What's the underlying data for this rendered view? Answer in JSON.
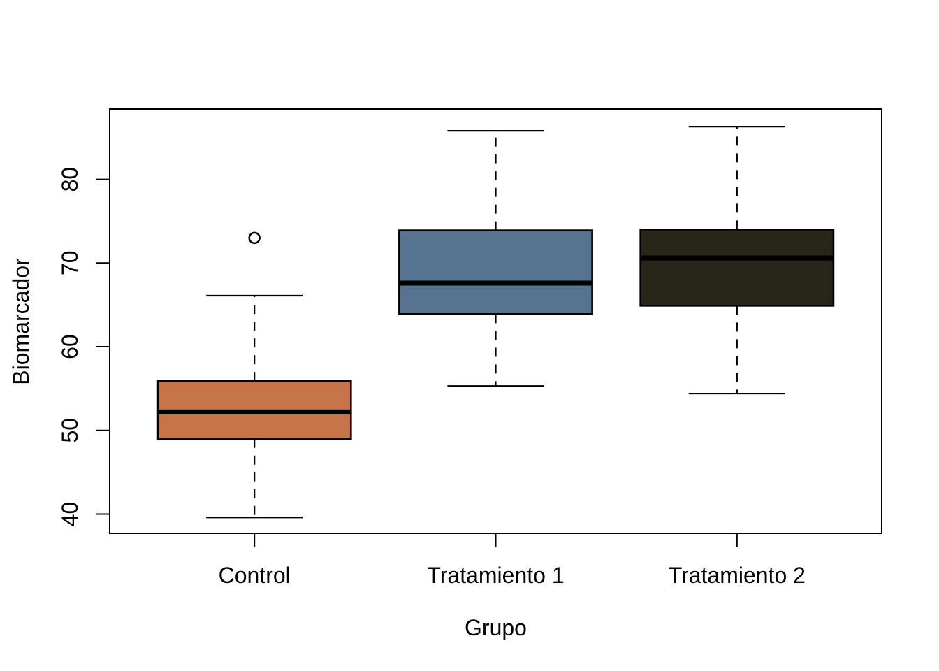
{
  "figure": {
    "background": "#FFFFFF",
    "axis_color": "#000000",
    "text_color": "#000000"
  },
  "chart_data": {
    "type": "boxplot",
    "title": "",
    "xlabel": "Grupo",
    "ylabel": "Biomarcador",
    "categories": [
      "Control",
      "Tratamiento 1",
      "Tratamiento 2"
    ],
    "yticks": [
      40,
      50,
      60,
      70,
      80
    ],
    "ylim": [
      37.7,
      88.4
    ],
    "xlim": [
      0.4,
      3.6
    ],
    "box_width": 0.8,
    "cap_width": 0.4,
    "grid": false,
    "legend": null,
    "orientation": "vertical",
    "whisker_style": "dashed",
    "series": [
      {
        "name": "Control",
        "whisker_low": 39.6,
        "q1": 49.0,
        "median": 52.2,
        "q3": 55.9,
        "whisker_high": 66.1,
        "outliers": [
          73.0
        ],
        "fill": "#C7744B"
      },
      {
        "name": "Tratamiento 1",
        "whisker_low": 55.3,
        "q1": 63.9,
        "median": 67.6,
        "q3": 73.9,
        "whisker_high": 85.8,
        "outliers": [],
        "fill": "#56738F"
      },
      {
        "name": "Tratamiento 2",
        "whisker_low": 54.4,
        "q1": 64.9,
        "median": 70.6,
        "q3": 74.0,
        "whisker_high": 86.3,
        "outliers": [],
        "fill": "#282619"
      }
    ]
  }
}
